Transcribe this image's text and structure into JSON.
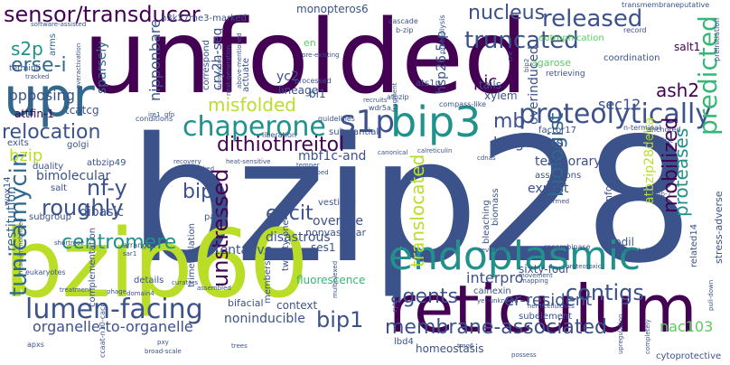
{
  "words": {
    "bzip28": "bzip28",
    "unfolded": "unfolded",
    "reticulum": "reticulum",
    "bzip60": "bzip60",
    "endoplasmic": "endoplasmic",
    "upr": "upr",
    "lumen_facing": "lumen-facing",
    "bip3": "bip3",
    "sensor_transducer": "sensor/transducer",
    "chaperone": "chaperone",
    "misfolded": "misfolded",
    "proteolytically": "proteolytically",
    "membrane_associated": "membrane-associated",
    "s1p": "s1p",
    "tunicamycin": "tunicamycin",
    "dithiothreitol": "dithiothreitol",
    "relocation": "relocation",
    "nucleus": "nucleus",
    "released": "released",
    "truncated": "truncated",
    "predicted": "predicted",
    "proteases": "proteases",
    "mobilized": "mobilized",
    "contigs": "contigs",
    "unstressed": "unstressed",
    "translocated": "translocated",
    "centromere": "centromere",
    "bip1": "bip1",
    "roughly": "roughly",
    "nf_y": "nf-y",
    "bip": "bip",
    "elicit": "elicit",
    "mb": "mb",
    "biologist": "biologist",
    "agents": "agents",
    "er_resident": "er-resident",
    "interpro": "interpro",
    "organelle_to_organelle": "organelle-to-organelle",
    "nac103": "nac103",
    "sec12": "sec12",
    "ash2": "ash2",
    "pic": "pic",
    "erse_i": "erse-i",
    "s2p": "s2p",
    "bzip": "bzip",
    "opposing": "opposing",
    "kingdoms": "kingdoms",
    "temporary": "temporary",
    "mbf1c_and": "mbf1c-and",
    "expert": "expert",
    "disastrous": "disastrous",
    "overuse": "overuse",
    "atbzip28delta": "atbzip28delta",
    "tentative": "tentative",
    "context": "context",
    "noninducible": "noninducible",
    "sixty_four": "sixty-four",
    "restitution": "restitution",
    "bimolecular": "bimolecular",
    "dibasic": "dibasic",
    "attfin_1": "attfin-1",
    "tcatcg": "tcatcg",
    "nipponbare": "nipponbare",
    "sparsely": "sparsely",
    "cry2h_seq": "cry2h-seq",
    "overinduced": "overinduced",
    "xylem": "xylem",
    "tails": "tails",
    "yc2": "yc2",
    "lineage": "lineage",
    "bi1": "bi1",
    "mbf1c": "mbf1c",
    "fluorescence": "fluorescence",
    "homeostasis": "homeostasis",
    "lbd4": "lbd4",
    "subelement": "subelement",
    "bifacial": "bifacial",
    "ses1": "ses1",
    "nonvascular": "nonvascular",
    "vestigial": "vestigial",
    "paint": "paint",
    "details": "details",
    "atbzip49": "atbzip49",
    "golgi": "golgi",
    "duality": "duality",
    "exits": "exits",
    "complementation": "complementation",
    "subgroup": "subgroup",
    "salt": "salt",
    "salt1": "salt1",
    "pdil": "pdil",
    "assertions": "assertions",
    "informatics": "informatics",
    "factor17": "factor17",
    "substantial": "substantial",
    "eutrophication": "eutrophication",
    "coordination": "coordination",
    "agarose": "agarose",
    "released_small": "retrieving",
    "monopteros6": "monopteros6",
    "hsp26_5_p": "hsp26.5-p",
    "ats1p": "ats1p",
    "h3k27me3_marked": "h3k27me3-marked",
    "correspond": "correspond",
    "actuate": "actuate",
    "arms": "arms",
    "terminii": "terminii",
    "en": "en",
    "cytoprotective": "cytoprotective",
    "stress_adverse": "stress-adverse",
    "related14": "related14",
    "trimethylation": "trimethylation",
    "membership": "membership",
    "twenty_one": "twenty-one",
    "calnexin": "calnexin",
    "biomass": "biomass",
    "bleaching": "bleaching",
    "wox14": "wox14",
    "ccaat_n10_cacg": "ccaat-n10-cacg",
    "wdr5a": "wdr5a",
    "compass_like": "compass-like",
    "guidelines": "guidelines",
    "liberation": "liberation",
    "conditions": "conditions",
    "atbzip": "atbzip",
    "processed": "processed",
    "proteolysis": "proteolysis",
    "cascade": "cascade",
    "b_zip": "b-zip",
    "transmembrane": "transmembrane",
    "putative": "putative",
    "record": "record",
    "preinitiation": "preinitiation",
    "anchored": "anchored",
    "explicit": "explicit",
    "n_terminal": "n-terminal",
    "canonical": "canonical",
    "calreticulin": "calreticulin",
    "temper": "temper",
    "unmapped": "unmapped",
    "recovery": "recovery",
    "blocked": "blocked",
    "heat_sensitive": "heat-sensitive",
    "arranged": "arranged",
    "sar1": "sar1",
    "eukaryotes": "eukaryotes",
    "treatment": "treatment",
    "phage": "phage",
    "domain4": "domain4",
    "curators": "curators",
    "assembled": "assembled",
    "apxs": "apxs",
    "pxy": "pxy",
    "broad_scale": "broad-scale",
    "trees": "trees",
    "cdnas": "cdnas",
    "malformed": "malformed",
    "recombinase": "recombinase",
    "constellation": "constellation",
    "revolution": "revolution",
    "yet_unknown": "yet-unknown",
    "possess": "possess",
    "tmo6": "tmo6",
    "hemicelluloses": "hemicelluloses",
    "movement": "movement",
    "mapping": "mapping",
    "proteotoxic": "proteotoxic",
    "upregulation": "upregulation",
    "completely": "completely",
    "pull_down": "pull-down",
    "cytoplasmic": "cytoplasmic",
    "multiplexed": "multiplexed",
    "fragment": "fragment",
    "recruits": "recruits",
    "bip2": "bip2",
    "cre": "cre",
    "software_assisted": "software-assisted",
    "tracked": "tracked",
    "overactivation": "overactivation",
    "subdivided": "subdivided",
    "next_generation": "next-generation",
    "above_mentioned": "above-mentioned",
    "pre_existing": "pre-existing",
    "gfp": "gfp",
    "ire1": "ire1",
    "head_immobilized": "head-immobilized",
    "shortroot": "shortroot",
    "atb_7": "athb-7"
  }
}
